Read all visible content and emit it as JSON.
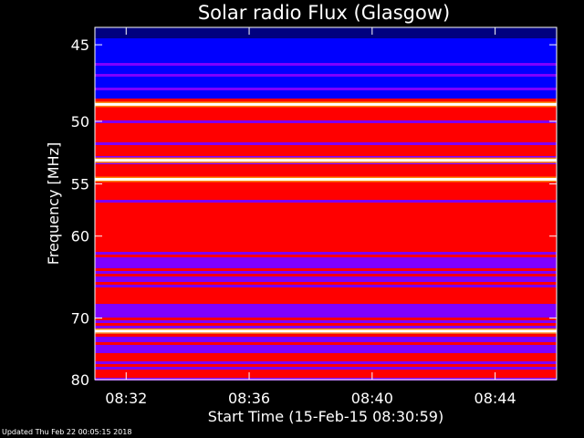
{
  "chart_data": {
    "type": "heatmap",
    "title": "Solar radio Flux (Glasgow)",
    "xlabel": "Start Time (15-Feb-15 08:30:59)",
    "ylabel": "Frequency [MHz]",
    "x_ticks": [
      "08:32",
      "08:36",
      "08:40",
      "08:44"
    ],
    "y_ticks": [
      45,
      50,
      55,
      60,
      70,
      80
    ],
    "x_range": [
      "08:30:59",
      "08:46:00"
    ],
    "y_range": [
      44,
      80
    ],
    "y_scale": "reciprocal",
    "colormap": [
      "#00007f",
      "#0000ff",
      "#7f00ff",
      "#ff0000",
      "#ff7f00",
      "#ffff00",
      "#ffffff"
    ],
    "bright_bands_mhz": [
      48.8,
      53.0,
      54.6,
      71.9
    ],
    "grid": false,
    "legend": "none"
  },
  "footer_text": "Updated Thu Feb 22 00:05:15 2018"
}
